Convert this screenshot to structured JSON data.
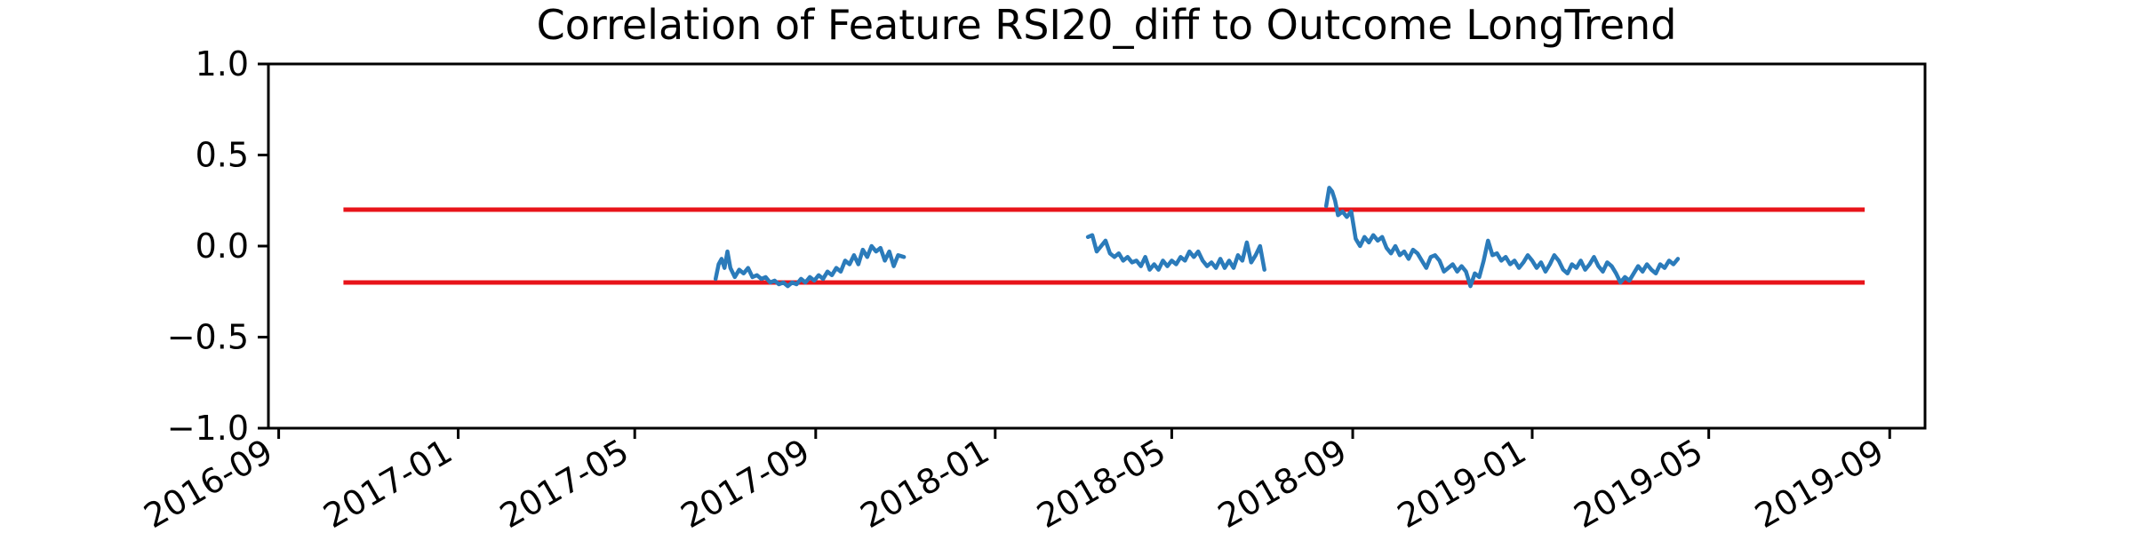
{
  "chart_data": {
    "type": "line",
    "title": "Correlation of Feature RSI20_diff to Outcome LongTrend",
    "xlabel": "",
    "ylabel": "",
    "ylim": [
      -1.0,
      1.0
    ],
    "xlim": [
      "2016-08-25",
      "2019-09-25"
    ],
    "y_ticks": [
      1.0,
      0.5,
      0.0,
      -0.5,
      -1.0
    ],
    "y_tick_labels": [
      "1.0",
      "0.5",
      "0.0",
      "−0.5",
      "−1.0"
    ],
    "x_ticks": [
      "2016-09-01",
      "2017-01-01",
      "2017-05-01",
      "2017-09-01",
      "2018-01-01",
      "2018-05-01",
      "2018-09-01",
      "2019-01-01",
      "2019-05-01",
      "2019-09-01"
    ],
    "x_tick_labels": [
      "2016-09",
      "2017-01",
      "2017-05",
      "2017-09",
      "2018-01",
      "2018-05",
      "2018-09",
      "2019-01",
      "2019-05",
      "2019-09"
    ],
    "grid": false,
    "reference_lines": [
      {
        "y": 0.2,
        "x_start": "2016-10-15",
        "x_end": "2019-08-15",
        "color": "#e8141a"
      },
      {
        "y": -0.2,
        "x_start": "2016-10-15",
        "x_end": "2019-08-15",
        "color": "#e8141a"
      }
    ],
    "series": [
      {
        "color": "#2b7bba",
        "segments": [
          [
            [
              "2017-06-25",
              -0.18
            ],
            [
              "2017-06-27",
              -0.1
            ],
            [
              "2017-06-29",
              -0.07
            ],
            [
              "2017-07-01",
              -0.12
            ],
            [
              "2017-07-03",
              -0.03
            ],
            [
              "2017-07-05",
              -0.12
            ],
            [
              "2017-07-08",
              -0.17
            ],
            [
              "2017-07-11",
              -0.13
            ],
            [
              "2017-07-14",
              -0.15
            ],
            [
              "2017-07-17",
              -0.12
            ],
            [
              "2017-07-20",
              -0.17
            ],
            [
              "2017-07-23",
              -0.16
            ],
            [
              "2017-07-26",
              -0.18
            ],
            [
              "2017-07-29",
              -0.17
            ],
            [
              "2017-08-01",
              -0.2
            ],
            [
              "2017-08-04",
              -0.19
            ],
            [
              "2017-08-07",
              -0.21
            ],
            [
              "2017-08-10",
              -0.2
            ],
            [
              "2017-08-13",
              -0.22
            ],
            [
              "2017-08-16",
              -0.2
            ],
            [
              "2017-08-19",
              -0.21
            ],
            [
              "2017-08-22",
              -0.18
            ],
            [
              "2017-08-25",
              -0.2
            ],
            [
              "2017-08-28",
              -0.17
            ],
            [
              "2017-08-31",
              -0.19
            ],
            [
              "2017-09-03",
              -0.16
            ],
            [
              "2017-09-06",
              -0.18
            ],
            [
              "2017-09-09",
              -0.14
            ],
            [
              "2017-09-12",
              -0.16
            ],
            [
              "2017-09-15",
              -0.12
            ],
            [
              "2017-09-18",
              -0.14
            ],
            [
              "2017-09-21",
              -0.08
            ],
            [
              "2017-09-24",
              -0.1
            ],
            [
              "2017-09-27",
              -0.05
            ],
            [
              "2017-09-30",
              -0.1
            ],
            [
              "2017-10-03",
              -0.02
            ],
            [
              "2017-10-06",
              -0.06
            ],
            [
              "2017-10-09",
              0.0
            ],
            [
              "2017-10-12",
              -0.03
            ],
            [
              "2017-10-15",
              -0.01
            ],
            [
              "2017-10-18",
              -0.08
            ],
            [
              "2017-10-21",
              -0.03
            ],
            [
              "2017-10-24",
              -0.11
            ],
            [
              "2017-10-27",
              -0.05
            ],
            [
              "2017-10-31",
              -0.06
            ]
          ],
          [
            [
              "2018-03-05",
              0.05
            ],
            [
              "2018-03-08",
              0.06
            ],
            [
              "2018-03-11",
              -0.03
            ],
            [
              "2018-03-14",
              0.0
            ],
            [
              "2018-03-17",
              0.03
            ],
            [
              "2018-03-20",
              -0.04
            ],
            [
              "2018-03-23",
              -0.06
            ],
            [
              "2018-03-26",
              -0.04
            ],
            [
              "2018-03-29",
              -0.08
            ],
            [
              "2018-04-01",
              -0.06
            ],
            [
              "2018-04-04",
              -0.09
            ],
            [
              "2018-04-07",
              -0.08
            ],
            [
              "2018-04-10",
              -0.11
            ],
            [
              "2018-04-13",
              -0.06
            ],
            [
              "2018-04-16",
              -0.13
            ],
            [
              "2018-04-19",
              -0.1
            ],
            [
              "2018-04-22",
              -0.13
            ],
            [
              "2018-04-25",
              -0.08
            ],
            [
              "2018-04-28",
              -0.11
            ],
            [
              "2018-05-01",
              -0.08
            ],
            [
              "2018-05-04",
              -0.1
            ],
            [
              "2018-05-07",
              -0.06
            ],
            [
              "2018-05-10",
              -0.08
            ],
            [
              "2018-05-13",
              -0.03
            ],
            [
              "2018-05-16",
              -0.06
            ],
            [
              "2018-05-19",
              -0.03
            ],
            [
              "2018-05-22",
              -0.08
            ],
            [
              "2018-05-25",
              -0.11
            ],
            [
              "2018-05-28",
              -0.09
            ],
            [
              "2018-05-31",
              -0.12
            ],
            [
              "2018-06-03",
              -0.07
            ],
            [
              "2018-06-06",
              -0.12
            ],
            [
              "2018-06-09",
              -0.08
            ],
            [
              "2018-06-12",
              -0.12
            ],
            [
              "2018-06-15",
              -0.05
            ],
            [
              "2018-06-18",
              -0.08
            ],
            [
              "2018-06-21",
              0.02
            ],
            [
              "2018-06-24",
              -0.09
            ],
            [
              "2018-06-27",
              -0.05
            ],
            [
              "2018-06-30",
              0.0
            ],
            [
              "2018-07-03",
              -0.13
            ]
          ],
          [
            [
              "2018-08-14",
              0.22
            ],
            [
              "2018-08-16",
              0.32
            ],
            [
              "2018-08-18",
              0.3
            ],
            [
              "2018-08-20",
              0.25
            ],
            [
              "2018-08-22",
              0.17
            ],
            [
              "2018-08-25",
              0.19
            ],
            [
              "2018-08-28",
              0.16
            ],
            [
              "2018-08-31",
              0.19
            ],
            [
              "2018-09-03",
              0.04
            ],
            [
              "2018-09-06",
              0.0
            ],
            [
              "2018-09-09",
              0.05
            ],
            [
              "2018-09-12",
              0.02
            ],
            [
              "2018-09-15",
              0.06
            ],
            [
              "2018-09-18",
              0.03
            ],
            [
              "2018-09-21",
              0.05
            ],
            [
              "2018-09-24",
              -0.01
            ],
            [
              "2018-09-27",
              -0.04
            ],
            [
              "2018-09-30",
              0.0
            ],
            [
              "2018-10-03",
              -0.05
            ],
            [
              "2018-10-06",
              -0.03
            ],
            [
              "2018-10-09",
              -0.07
            ],
            [
              "2018-10-12",
              -0.02
            ],
            [
              "2018-10-15",
              -0.04
            ],
            [
              "2018-10-18",
              -0.08
            ],
            [
              "2018-10-21",
              -0.12
            ],
            [
              "2018-10-24",
              -0.06
            ],
            [
              "2018-10-27",
              -0.05
            ],
            [
              "2018-10-30",
              -0.08
            ],
            [
              "2018-11-02",
              -0.14
            ],
            [
              "2018-11-05",
              -0.12
            ],
            [
              "2018-11-08",
              -0.1
            ],
            [
              "2018-11-11",
              -0.14
            ],
            [
              "2018-11-14",
              -0.11
            ],
            [
              "2018-11-17",
              -0.14
            ],
            [
              "2018-11-20",
              -0.22
            ],
            [
              "2018-11-23",
              -0.15
            ],
            [
              "2018-11-26",
              -0.17
            ],
            [
              "2018-11-29",
              -0.08
            ],
            [
              "2018-12-02",
              0.03
            ],
            [
              "2018-12-05",
              -0.05
            ],
            [
              "2018-12-08",
              -0.04
            ],
            [
              "2018-12-11",
              -0.08
            ],
            [
              "2018-12-14",
              -0.06
            ],
            [
              "2018-12-17",
              -0.1
            ],
            [
              "2018-12-20",
              -0.08
            ],
            [
              "2018-12-23",
              -0.12
            ],
            [
              "2018-12-26",
              -0.09
            ],
            [
              "2018-12-29",
              -0.05
            ],
            [
              "2019-01-01",
              -0.08
            ],
            [
              "2019-01-04",
              -0.12
            ],
            [
              "2019-01-07",
              -0.09
            ],
            [
              "2019-01-10",
              -0.14
            ],
            [
              "2019-01-13",
              -0.1
            ],
            [
              "2019-01-16",
              -0.05
            ],
            [
              "2019-01-19",
              -0.08
            ],
            [
              "2019-01-22",
              -0.13
            ],
            [
              "2019-01-25",
              -0.15
            ],
            [
              "2019-01-28",
              -0.1
            ],
            [
              "2019-01-31",
              -0.12
            ],
            [
              "2019-02-03",
              -0.08
            ],
            [
              "2019-02-06",
              -0.13
            ],
            [
              "2019-02-09",
              -0.1
            ],
            [
              "2019-02-12",
              -0.06
            ],
            [
              "2019-02-15",
              -0.11
            ],
            [
              "2019-02-18",
              -0.14
            ],
            [
              "2019-02-21",
              -0.09
            ],
            [
              "2019-02-24",
              -0.11
            ],
            [
              "2019-02-27",
              -0.15
            ],
            [
              "2019-03-02",
              -0.2
            ],
            [
              "2019-03-05",
              -0.17
            ],
            [
              "2019-03-08",
              -0.19
            ],
            [
              "2019-03-11",
              -0.15
            ],
            [
              "2019-03-14",
              -0.11
            ],
            [
              "2019-03-17",
              -0.14
            ],
            [
              "2019-03-20",
              -0.1
            ],
            [
              "2019-03-23",
              -0.13
            ],
            [
              "2019-03-26",
              -0.15
            ],
            [
              "2019-03-29",
              -0.1
            ],
            [
              "2019-04-01",
              -0.12
            ],
            [
              "2019-04-04",
              -0.08
            ],
            [
              "2019-04-07",
              -0.1
            ],
            [
              "2019-04-10",
              -0.07
            ]
          ]
        ]
      }
    ]
  }
}
